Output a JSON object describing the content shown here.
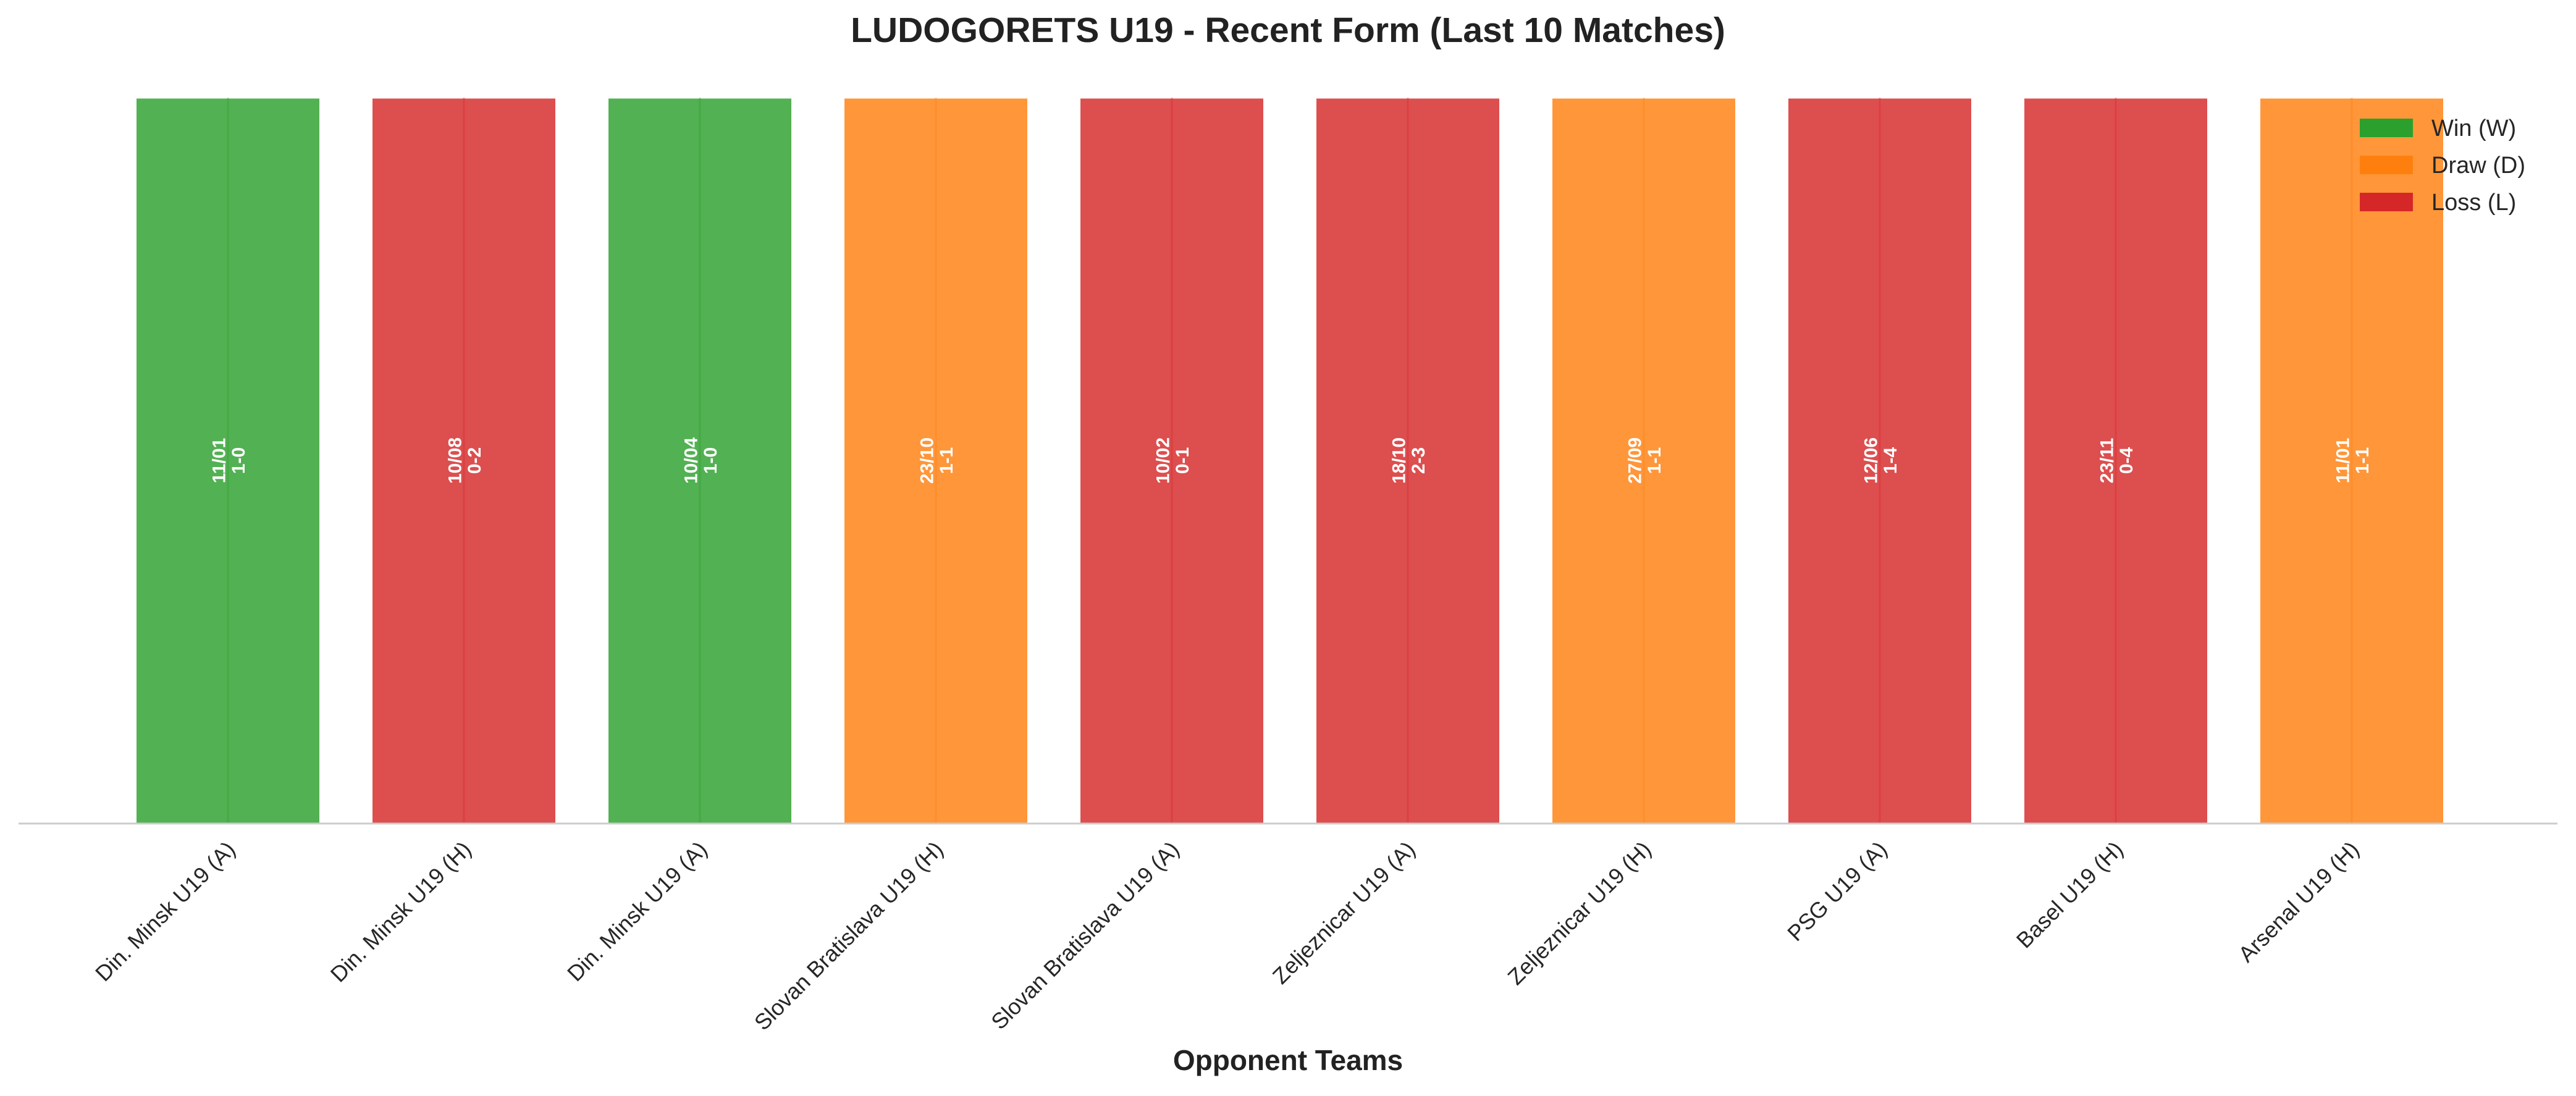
{
  "chart_data": {
    "type": "bar",
    "title": "LUDOGORETS U19 - Recent Form (Last 10 Matches)",
    "xlabel": "Opponent Teams",
    "ylabel": "",
    "grid": false,
    "categories": [
      "Din. Minsk U19 (A)",
      "Din. Minsk U19 (H)",
      "Din. Minsk U19 (A)",
      "Slovan Bratislava U19 (H)",
      "Slovan Bratislava U19 (A)",
      "Zeljeznicar U19 (A)",
      "Zeljeznicar U19 (H)",
      "PSG U19 (A)",
      "Basel U19 (H)",
      "Arsenal U19 (H)"
    ],
    "values": [
      1,
      1,
      1,
      1,
      1,
      1,
      1,
      1,
      1,
      1
    ],
    "results": [
      "W",
      "L",
      "W",
      "D",
      "L",
      "L",
      "D",
      "L",
      "L",
      "D"
    ],
    "dates": [
      "11/01",
      "10/08",
      "10/04",
      "23/10",
      "10/02",
      "18/10",
      "27/09",
      "12/06",
      "23/11",
      "11/01"
    ],
    "scores": [
      "1-0",
      "0-2",
      "1-0",
      "1-1",
      "0-1",
      "2-3",
      "1-1",
      "1-4",
      "0-4",
      "1-1"
    ],
    "legend": {
      "position": "top-right",
      "entries": [
        {
          "key": "W",
          "label": "Win (W)",
          "color": "#2ca02c"
        },
        {
          "key": "D",
          "label": "Draw (D)",
          "color": "#ff7f0e"
        },
        {
          "key": "L",
          "label": "Loss (L)",
          "color": "#d62728"
        }
      ]
    }
  }
}
